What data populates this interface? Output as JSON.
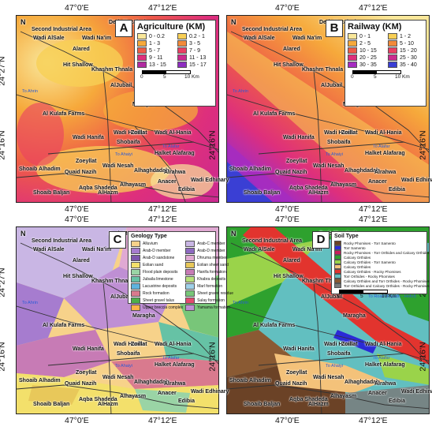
{
  "coords": {
    "lon_left": "47°0'E",
    "lon_right": "47°12'E",
    "lat_top": "24°27'N",
    "lat_bottom": "24°16'N"
  },
  "north": "N",
  "panels": [
    {
      "letter": "A",
      "legend_title": "Agriculture (KM)",
      "classes": [
        "0 - 0.2",
        "0.2 - 1",
        "1 - 3",
        "3 - 5",
        "5 - 7",
        "7 - 9",
        "9 - 11",
        "11 - 13",
        "13 - 15",
        "15 - 17"
      ],
      "colors": [
        "#f9e79a",
        "#f8cf55",
        "#f6a93b",
        "#f28a3a",
        "#ee5c47",
        "#ea3f63",
        "#de2f7c",
        "#cb2a8f",
        "#b12ba0",
        "#8e2ec0"
      ]
    },
    {
      "letter": "B",
      "legend_title": "Railway (KM)",
      "classes": [
        "0 - 1",
        "1 - 2",
        "2 - 5",
        "5 - 10",
        "10 - 15",
        "15 - 20",
        "20 - 25",
        "25 - 30",
        "30 - 35",
        "35 - 40"
      ],
      "colors": [
        "#f9e79a",
        "#f8cf55",
        "#f6a93b",
        "#f28a3a",
        "#ee5c47",
        "#ea3f63",
        "#de2f7c",
        "#cb2a8f",
        "#a52cc0",
        "#3a3fd4"
      ]
    },
    {
      "letter": "C",
      "legend_title": "Geology Type",
      "classes": [
        "Alluvium",
        "Arab-C member",
        "Arab-D member",
        "Arab-D member",
        "Arab-D sandstone",
        "Dhruma member",
        "Eolian sand",
        "Eolian sheet sand",
        "Flood plain deposits",
        "Hanifa formation",
        "Jubaila limestone",
        "Khabra deposits",
        "Lacustrine deposits",
        "Marl formation",
        "Rock formation",
        "Sheet gravel residue",
        "Sheet gravel talus",
        "Sulay formation",
        "Upper breccia complex",
        "Yamama formation"
      ],
      "colors": [
        "#f7d28a",
        "#c9b6e4",
        "#a67ccf",
        "#8e6ac1",
        "#7d56ad",
        "#e0a9d3",
        "#f3e06b",
        "#e8c85a",
        "#9ad4a5",
        "#c77bb5",
        "#66c2a5",
        "#b7e07a",
        "#5fb3de",
        "#9fd0e8",
        "#d97a8e",
        "#78c679",
        "#4daf4a",
        "#e34a6f",
        "#ffb347",
        "#bf8fd4"
      ]
    },
    {
      "letter": "D",
      "legend_title": "Soil Type",
      "classes": [
        "Rocky Phomises - Torr Samento",
        "Torr Samento",
        "Rocky Phomises - Torr Orthides and Calcary Orthides",
        "Calcary Orthides",
        "Calcary Orthides - Torr Samento",
        "Calcary Orthides",
        "Calcary Orthides - Rocky Phomises",
        "Torr Orthides - Rocky Phomises",
        "Calcary Orthides and Torr Orthides - Rocky Phomises",
        "Torr Orthides and Calcary Orthides - Rocky Phomises"
      ],
      "colors": [
        "#6b4226",
        "#2b2bd6",
        "#c81e5a",
        "#2ea12e",
        "#9ad34a",
        "#f4c27a",
        "#e2342e",
        "#62bfc0",
        "#8a5a33",
        "#7a7a7a"
      ]
    }
  ],
  "scale": {
    "labels": [
      "0",
      "5",
      "10 Km"
    ]
  },
  "places": [
    "Derb Mazaleej",
    "Second Industrial Area",
    "Wadi AlSale",
    "Wadi Na'im",
    "Alared",
    "Hit Shallow",
    "Khashm Thnala",
    "AlJubail",
    "Maragha",
    "Al Kulafa Farms",
    "Wadi Hanifa",
    "Zoillat",
    "Wadi Al-Hania",
    "Wadi Hanifa",
    "Shobaifa",
    "Halket Alafarag",
    "Zoeyllat",
    "Wadi Nesah",
    "Shoaib Alhadim",
    "Quaid Nazih",
    "Alhaghdadah",
    "Alrahwa",
    "Anacer",
    "Alhayasm",
    "Aqba Shadeda",
    "Shoaib Baljan",
    "AlHazm",
    "Edibia",
    "Wadi Edhinary"
  ],
  "roads": [
    "To Road (Riyadh - Hofuf)",
    "To Ahrin",
    "To Alafar",
    "To Ahaiyi"
  ]
}
